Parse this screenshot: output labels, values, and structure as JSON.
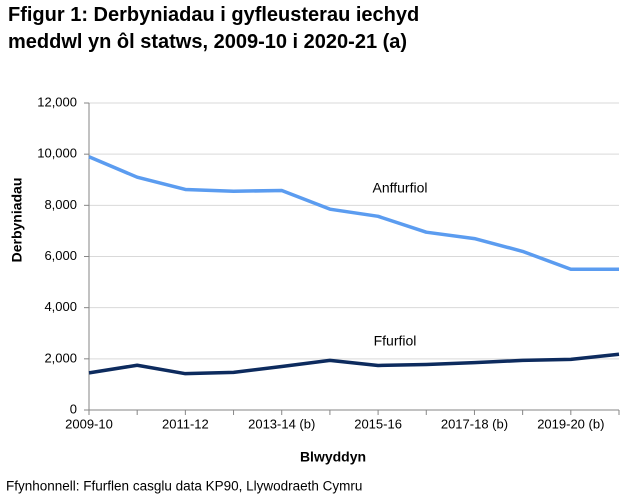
{
  "chart_data": {
    "type": "line",
    "title": "Ffigur 1: Derbyniadau i gyfleusterau iechyd meddwl yn ôl statws, 2009-10 i 2020-21 (a)",
    "y_label": "Derbyniadau",
    "x_label": "Blwyddyn",
    "source": "Ffynhonnell: Ffurflen casglu data KP90, Llywodraeth Cymru",
    "categories": [
      "2009-10",
      null,
      "2011-12",
      null,
      "2013-14 (b)",
      null,
      "2015-16",
      null,
      "2017-18 (b)",
      null,
      "2019-20 (b)",
      null
    ],
    "series": [
      {
        "name": "Anffurfiol",
        "color": "#5b9cf0",
        "values": [
          9900,
          9100,
          8620,
          8550,
          8580,
          7850,
          7570,
          6950,
          6700,
          6200,
          5500,
          5500
        ]
      },
      {
        "name": "Ffurfiol",
        "color": "#0d2b5e",
        "values": [
          1450,
          1750,
          1420,
          1470,
          1700,
          1940,
          1740,
          1780,
          1850,
          1940,
          1980,
          2180
        ]
      }
    ],
    "ylim": [
      0,
      12000
    ],
    "yticks": [
      0,
      {
        "value": 2000,
        "label": "2,000"
      },
      {
        "value": 4000,
        "label": "4,000"
      },
      {
        "value": 6000,
        "label": "6,000"
      },
      {
        "value": 8000,
        "label": "8,000"
      },
      {
        "value": 10000,
        "label": "10,000"
      },
      {
        "value": 12000,
        "label": "12,000"
      }
    ],
    "grid": true
  }
}
